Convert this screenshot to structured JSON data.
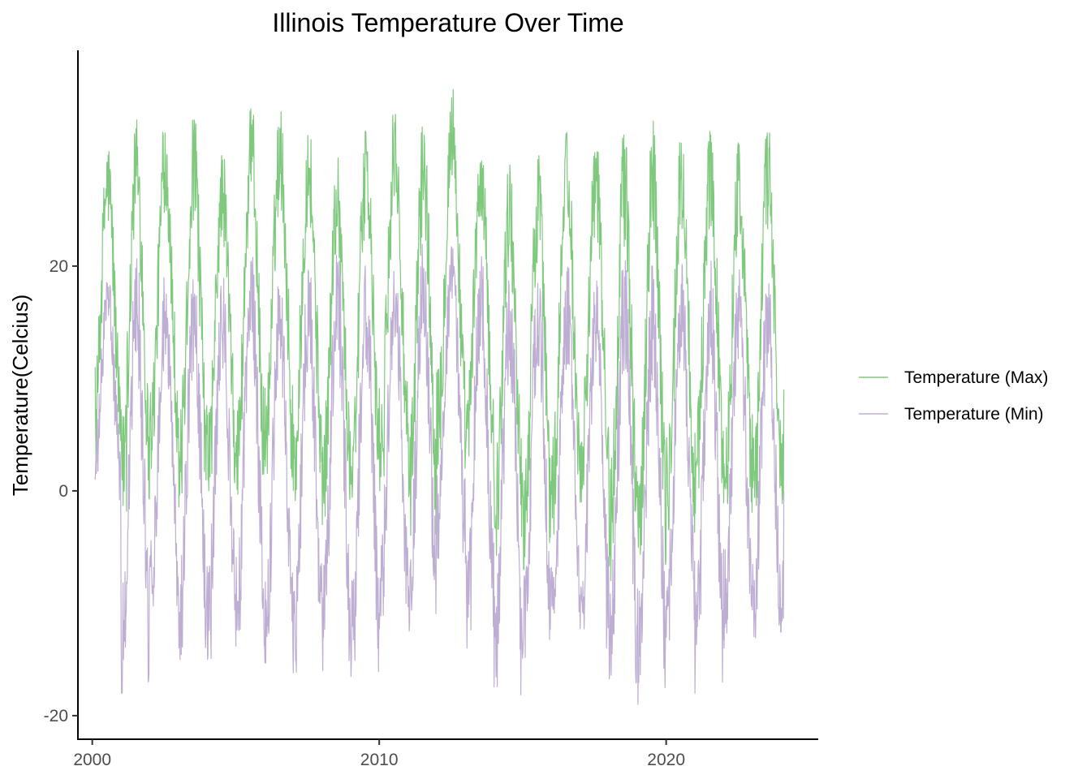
{
  "chart_data": {
    "type": "line",
    "title": "Illinois Temperature Over Time",
    "xlabel": "",
    "ylabel": "Temperature(Celcius)",
    "xlim": [
      1999.5,
      2025.3
    ],
    "ylim": [
      -22.1,
      39.2
    ],
    "x_ticks": [
      2000,
      2010,
      2020
    ],
    "x_tick_labels": [
      "2000",
      "2010",
      "2020"
    ],
    "y_ticks": [
      -20,
      0,
      20
    ],
    "y_tick_labels": [
      "-20",
      "0",
      "20"
    ],
    "grid": false,
    "legend_position": "right",
    "x_range": [
      2000.1,
      2024.1
    ],
    "points_per_year": 73,
    "series": [
      {
        "name": "Temperature (Max)",
        "color": "#7fc97f",
        "winter_min_by_year": [
          1,
          -2,
          2,
          -2,
          0,
          -1,
          1,
          -1,
          -3,
          -1,
          0,
          -4,
          2,
          1,
          -6,
          -7,
          -4,
          -1,
          -8,
          -7,
          -4,
          -2,
          -3,
          -2
        ],
        "summer_max_by_year": [
          31,
          33,
          33,
          33,
          30,
          34,
          34,
          33,
          30,
          32,
          34,
          33,
          36,
          31,
          29,
          30,
          32,
          31,
          32,
          33,
          32,
          32,
          31,
          32
        ],
        "start_value": 11,
        "end_value": 9
      },
      {
        "name": "Temperature (Min)",
        "color": "#beaed4",
        "winter_min_by_year": [
          -2,
          -18,
          -12,
          -15,
          -15,
          -14,
          -17,
          -17,
          -16,
          -17,
          -13,
          -14,
          -6,
          -14,
          -19,
          -16,
          -15,
          -15,
          -19,
          -19,
          -14,
          -18,
          -14,
          -14
        ],
        "summer_max_by_year": [
          19,
          21,
          19,
          19,
          19,
          21,
          20,
          21,
          21,
          20,
          21,
          22,
          22,
          21,
          20,
          20,
          20,
          19,
          21,
          20,
          21,
          21,
          20,
          19
        ],
        "start_value": 1,
        "end_value": 0
      }
    ]
  }
}
